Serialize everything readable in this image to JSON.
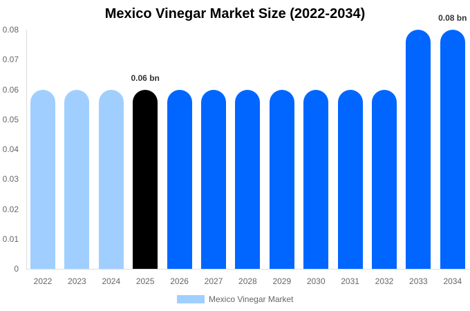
{
  "chart_data": {
    "type": "bar",
    "title": "Mexico Vinegar Market Size (2022-2034)",
    "xlabel": "",
    "ylabel": "",
    "ylim": [
      0,
      0.08
    ],
    "yticks": [
      "0",
      "0.01",
      "0.02",
      "0.03",
      "0.04",
      "0.05",
      "0.06",
      "0.07",
      "0.08"
    ],
    "categories": [
      "2022",
      "2023",
      "2024",
      "2025",
      "2026",
      "2027",
      "2028",
      "2029",
      "2030",
      "2031",
      "2032",
      "2033",
      "2034"
    ],
    "series": [
      {
        "name": "Mexico Vinegar Market",
        "values": [
          0.06,
          0.06,
          0.06,
          0.06,
          0.06,
          0.06,
          0.06,
          0.06,
          0.06,
          0.06,
          0.06,
          0.08,
          0.08
        ]
      }
    ],
    "bar_colors": [
      "#a0cfff",
      "#a0cfff",
      "#a0cfff",
      "#000000",
      "#0066ff",
      "#0066ff",
      "#0066ff",
      "#0066ff",
      "#0066ff",
      "#0066ff",
      "#0066ff",
      "#0066ff",
      "#0066ff"
    ],
    "annotations": [
      {
        "category": "2025",
        "text": "0.06 bn"
      },
      {
        "category": "2034",
        "text": "0.08 bn"
      }
    ],
    "legend": {
      "position": "bottom",
      "entries": [
        "Mexico Vinegar Market"
      ],
      "color": "#a0cfff"
    },
    "grid": false
  }
}
